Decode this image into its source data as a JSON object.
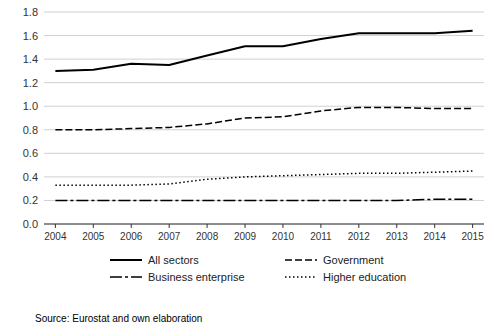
{
  "chart_data": {
    "type": "line",
    "x": [
      2004,
      2005,
      2006,
      2007,
      2008,
      2009,
      2010,
      2011,
      2012,
      2013,
      2014,
      2015
    ],
    "xlim": [
      2003.7,
      2015.3
    ],
    "xticks": [
      2004,
      2005,
      2006,
      2007,
      2008,
      2009,
      2010,
      2011,
      2012,
      2013,
      2014,
      2015
    ],
    "ylim": [
      0.0,
      1.8
    ],
    "yticks": [
      {
        "value": 0.0,
        "label": "0.0"
      },
      0.2,
      0.4,
      0.6,
      0.8,
      {
        "value": 1.0,
        "label": "1.0"
      },
      1.2,
      1.4,
      1.6,
      1.8
    ],
    "grid": true,
    "legend": "bottom",
    "series": [
      {
        "name": "All sectors",
        "color": "#000000",
        "line_style": "solid",
        "values": [
          1.3,
          1.31,
          1.36,
          1.35,
          1.43,
          1.51,
          1.51,
          1.57,
          1.62,
          1.62,
          1.62,
          1.64
        ]
      },
      {
        "name": "Government",
        "color": "#000000",
        "line_style": "dashed",
        "values": [
          0.8,
          0.8,
          0.81,
          0.82,
          0.85,
          0.9,
          0.91,
          0.96,
          0.99,
          0.99,
          0.98,
          0.98
        ]
      },
      {
        "name": "Business enterprise",
        "color": "#000000",
        "line_style": "dashdot",
        "values": [
          0.2,
          0.2,
          0.2,
          0.2,
          0.2,
          0.2,
          0.2,
          0.2,
          0.2,
          0.2,
          0.21,
          0.21
        ]
      },
      {
        "name": "Higher education",
        "color": "#000000",
        "line_style": "dotted",
        "values": [
          0.33,
          0.33,
          0.33,
          0.34,
          0.38,
          0.4,
          0.41,
          0.42,
          0.43,
          0.43,
          0.44,
          0.45
        ]
      }
    ],
    "source": "Source: Eurostat and own elaboration"
  }
}
